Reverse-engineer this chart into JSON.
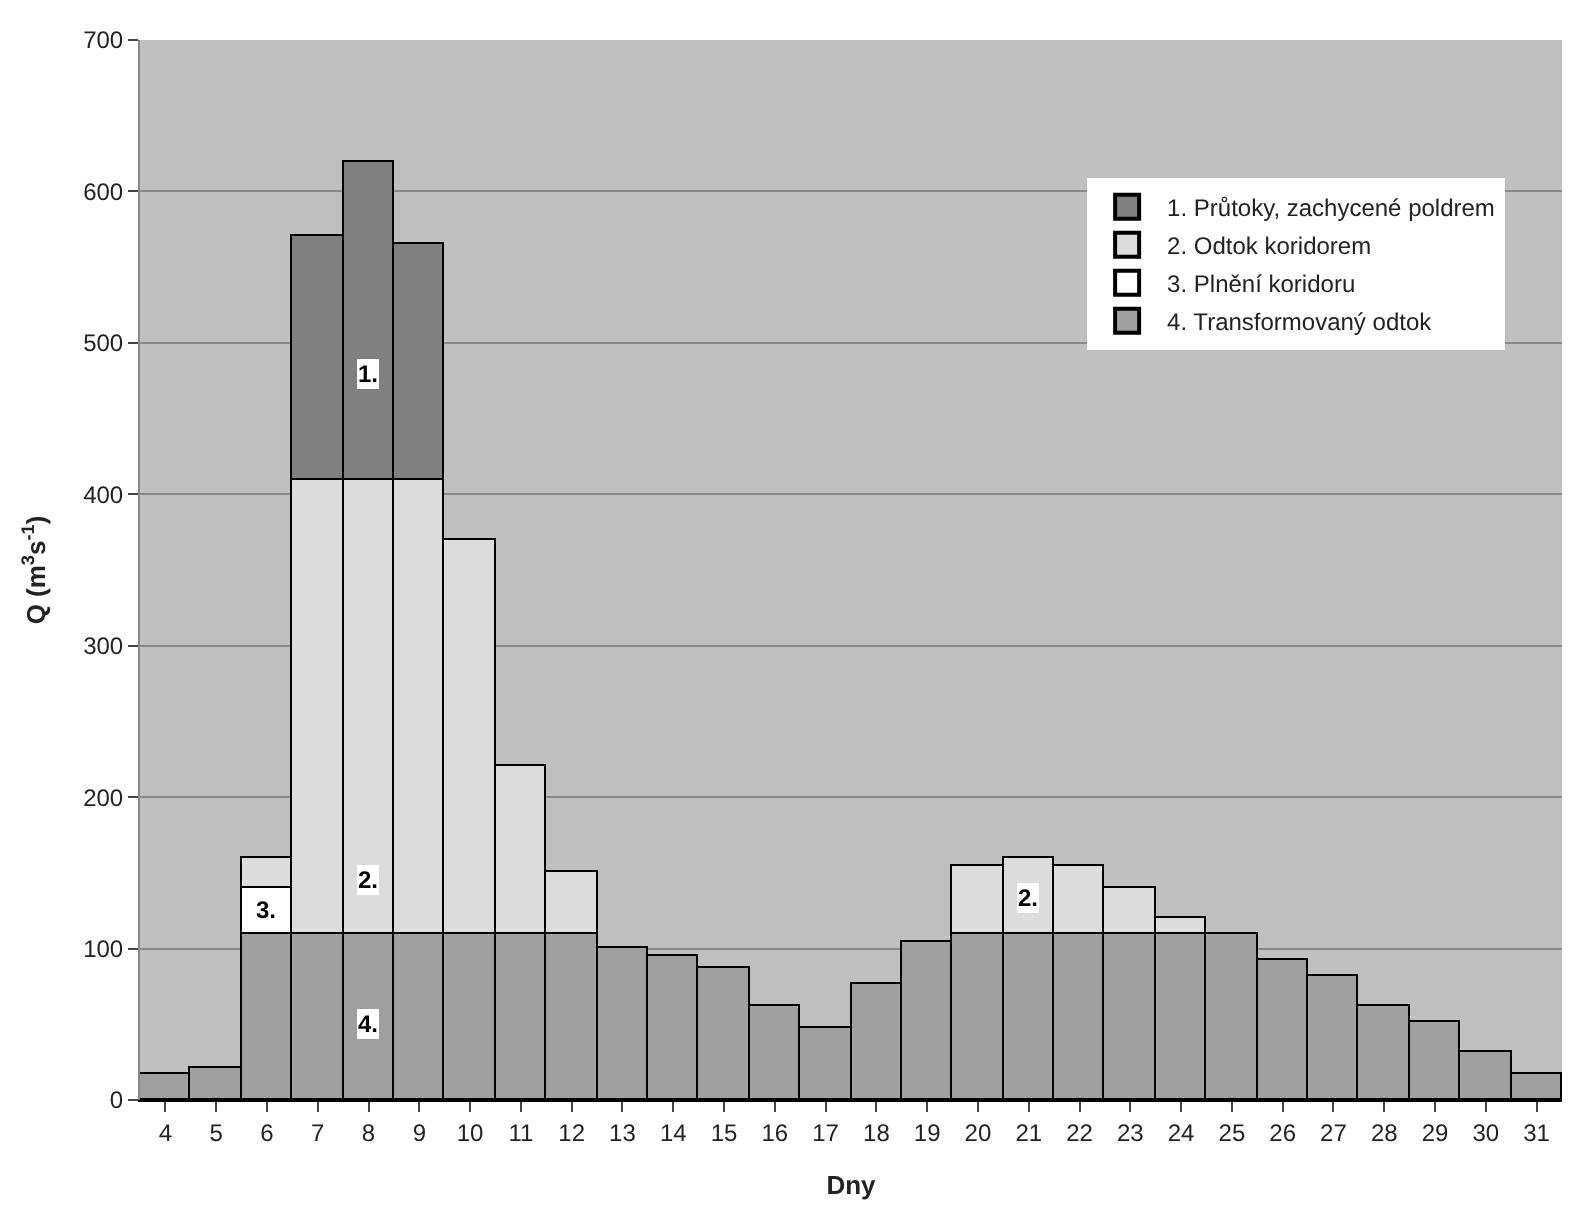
{
  "chart_data": {
    "type": "bar",
    "stacked": true,
    "xlabel": "Dny",
    "ylabel": "Q (m$^{3}$s$^{-1}$)",
    "categories": [
      "4",
      "5",
      "6",
      "7",
      "8",
      "9",
      "10",
      "11",
      "12",
      "13",
      "14",
      "15",
      "16",
      "17",
      "18",
      "19",
      "20",
      "21",
      "22",
      "23",
      "24",
      "25",
      "26",
      "27",
      "28",
      "29",
      "30",
      "31"
    ],
    "series": [
      {
        "name": "4. Transformovaný odtok",
        "color": "#a0a0a0",
        "values": [
          17,
          21,
          110,
          110,
          110,
          110,
          110,
          110,
          110,
          100,
          95,
          87,
          62,
          48,
          77,
          105,
          110,
          110,
          110,
          110,
          110,
          110,
          92,
          82,
          62,
          52,
          32,
          17
        ]
      },
      {
        "name": "3. Plnění koridoru",
        "color": "#ffffff",
        "values": [
          null,
          null,
          30,
          null,
          null,
          null,
          null,
          null,
          null,
          null,
          null,
          null,
          null,
          null,
          null,
          null,
          null,
          null,
          null,
          null,
          null,
          null,
          null,
          null,
          null,
          null,
          null,
          null
        ]
      },
      {
        "name": "2. Odtok koridorem",
        "color": "#dcdcdc",
        "values": [
          null,
          null,
          20,
          300,
          300,
          300,
          260,
          110,
          40,
          null,
          null,
          null,
          null,
          null,
          null,
          null,
          45,
          50,
          45,
          30,
          10,
          null,
          null,
          null,
          null,
          null,
          null,
          null
        ]
      },
      {
        "name": "1. Průtoky, zachycené poldrem",
        "color": "#808080",
        "values": [
          null,
          null,
          null,
          160,
          210,
          155,
          null,
          null,
          null,
          null,
          null,
          null,
          null,
          null,
          null,
          null,
          null,
          null,
          null,
          null,
          null,
          null,
          null,
          null,
          null,
          null,
          null,
          null
        ]
      }
    ],
    "ylim": [
      0,
      700
    ],
    "yticks": [
      0,
      100,
      200,
      300,
      400,
      500,
      600,
      700
    ],
    "grid": "y",
    "legend": "top right",
    "annotations": [
      {
        "text": "1.",
        "x": "8",
        "y": 480
      },
      {
        "text": "2.",
        "x": "8",
        "y": 145
      },
      {
        "text": "3.",
        "x": "6",
        "y": 125
      },
      {
        "text": "4.",
        "x": "8",
        "y": 50
      },
      {
        "text": "2.",
        "x": "21",
        "y": 133
      }
    ]
  }
}
